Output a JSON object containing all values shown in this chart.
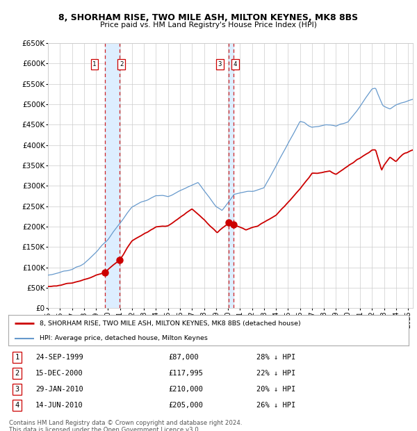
{
  "title": "8, SHORHAM RISE, TWO MILE ASH, MILTON KEYNES, MK8 8BS",
  "subtitle": "Price paid vs. HM Land Registry's House Price Index (HPI)",
  "legend1": "8, SHORHAM RISE, TWO MILE ASH, MILTON KEYNES, MK8 8BS (detached house)",
  "legend2": "HPI: Average price, detached house, Milton Keynes",
  "footnote1": "Contains HM Land Registry data © Crown copyright and database right 2024.",
  "footnote2": "This data is licensed under the Open Government Licence v3.0.",
  "transactions": [
    {
      "num": 1,
      "date": "24-SEP-1999",
      "price": 87000,
      "pct": "28%",
      "year": 1999.73
    },
    {
      "num": 2,
      "date": "15-DEC-2000",
      "price": 117995,
      "pct": "22%",
      "year": 2000.96
    },
    {
      "num": 3,
      "date": "29-JAN-2010",
      "price": 210000,
      "pct": "20%",
      "year": 2010.08
    },
    {
      "num": 4,
      "date": "14-JUN-2010",
      "price": 205000,
      "pct": "26%",
      "year": 2010.45
    }
  ],
  "red_line_color": "#cc0000",
  "blue_line_color": "#6699cc",
  "vline_color": "#cc0000",
  "shade_color": "#ddeeff",
  "background_color": "#ffffff",
  "grid_color": "#cccccc",
  "ylim": [
    0,
    650000
  ],
  "xlim": [
    1995.0,
    2025.4
  ],
  "yticks": [
    0,
    50000,
    100000,
    150000,
    200000,
    250000,
    300000,
    350000,
    400000,
    450000,
    500000,
    550000,
    600000,
    650000
  ],
  "xticks": [
    1995,
    1996,
    1997,
    1998,
    1999,
    2000,
    2001,
    2002,
    2003,
    2004,
    2005,
    2006,
    2007,
    2008,
    2009,
    2010,
    2011,
    2012,
    2013,
    2014,
    2015,
    2016,
    2017,
    2018,
    2019,
    2020,
    2021,
    2022,
    2023,
    2024,
    2025
  ]
}
